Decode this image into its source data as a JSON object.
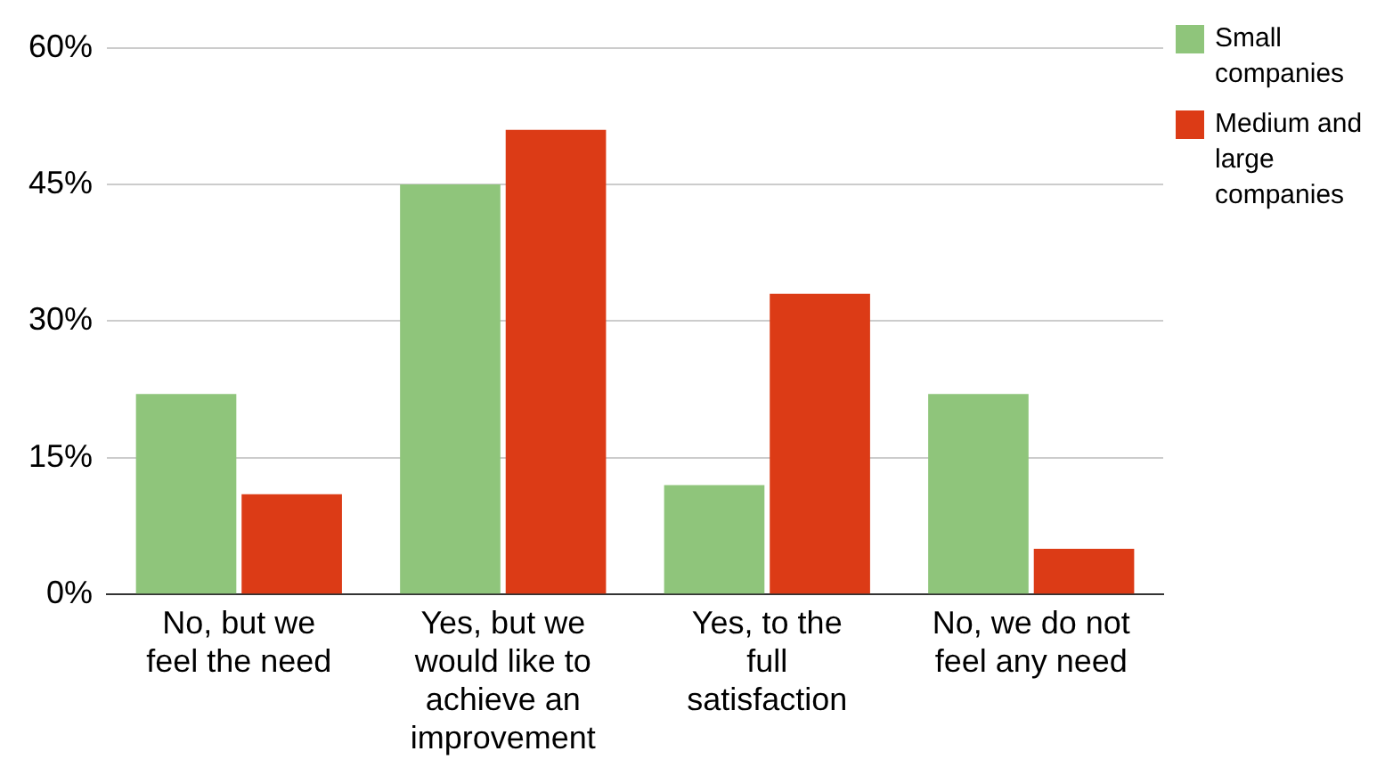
{
  "chart_data": {
    "type": "bar",
    "categories": [
      "No, but we feel the need",
      "Yes, but we would like to achieve an improvement",
      "Yes, to the full satisfaction",
      "No, we do not feel any need"
    ],
    "series": [
      {
        "name": "Small companies",
        "color": "#8fc57b",
        "values": [
          22,
          45,
          12,
          22
        ]
      },
      {
        "name": "Medium and large companies",
        "color": "#dc3b16",
        "values": [
          11,
          51,
          33,
          5
        ]
      }
    ],
    "ylim": [
      0,
      60
    ],
    "yticks": [
      {
        "value": 0,
        "label": "0%"
      },
      {
        "value": 15,
        "label": "15%"
      },
      {
        "value": 30,
        "label": "30%"
      },
      {
        "value": 45,
        "label": "45%"
      },
      {
        "value": 60,
        "label": "60%"
      }
    ],
    "grid": "y",
    "legend": "top right"
  }
}
